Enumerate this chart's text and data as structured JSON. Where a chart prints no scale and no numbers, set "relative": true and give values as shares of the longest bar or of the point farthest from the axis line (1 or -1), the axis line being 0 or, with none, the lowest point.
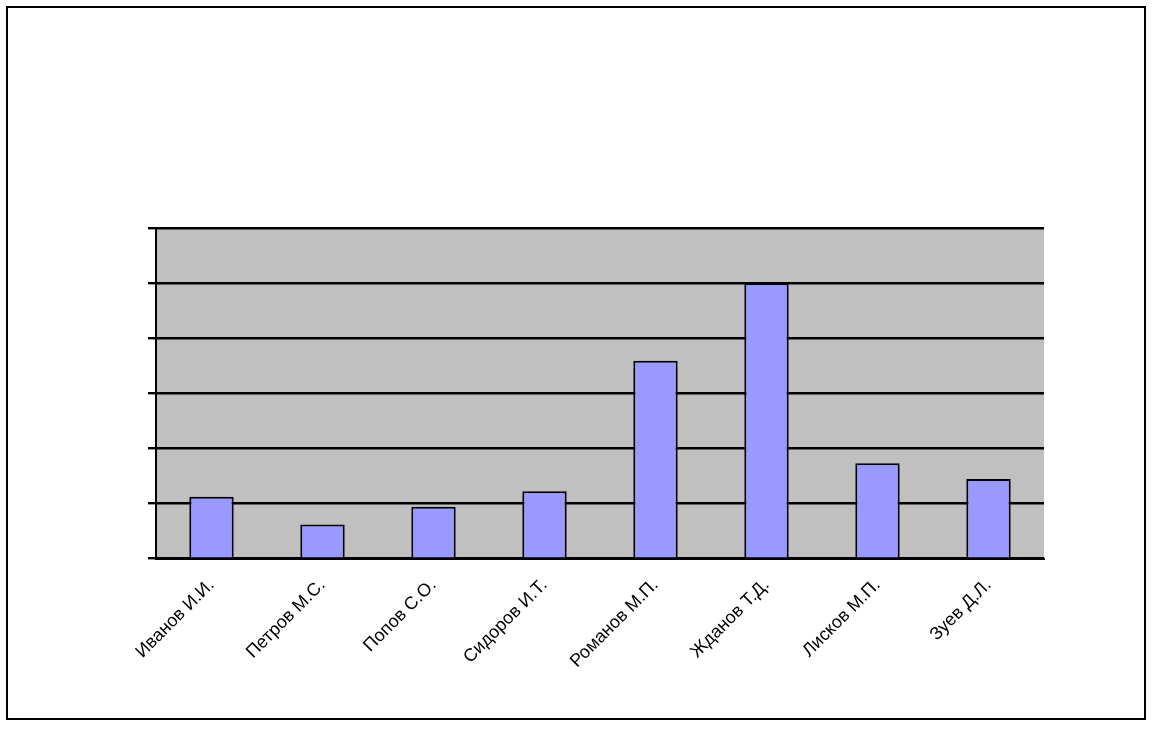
{
  "chart_data": {
    "type": "bar",
    "relative": true,
    "categories": [
      "Иванов И.И.",
      "Петров М.С.",
      "Попов С.О.",
      "Сидоров И.Т.",
      "Романов М.П.",
      "Жданов Т.Д.",
      "Лисков М.П.",
      "Зуев Д.Л."
    ],
    "values": [
      0.225,
      0.124,
      0.188,
      0.245,
      0.718,
      1,
      0.346,
      0.289
    ],
    "color": "#9999ff",
    "grid": "y",
    "legend": false
  }
}
